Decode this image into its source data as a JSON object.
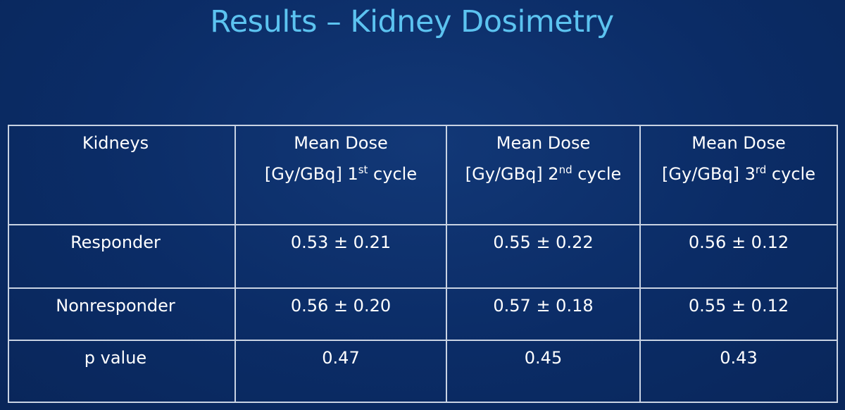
{
  "slide": {
    "title": "Results – Kidney Dosimetry"
  },
  "table": {
    "corner_label": "Kidneys",
    "columns": [
      {
        "line1": "Mean Dose",
        "line2_prefix": "[Gy/GBq] 1",
        "line2_sup": "st",
        "line2_suffix": " cycle"
      },
      {
        "line1": "Mean Dose",
        "line2_prefix": "[Gy/GBq] 2",
        "line2_sup": "nd",
        "line2_suffix": " cycle"
      },
      {
        "line1": "Mean Dose",
        "line2_prefix": "[Gy/GBq]  3",
        "line2_sup": "rd",
        "line2_suffix": " cycle"
      }
    ],
    "rows": [
      {
        "label": "Responder",
        "values": [
          "0.53 ± 0.21",
          "0.55 ± 0.22",
          "0.56 ± 0.12"
        ]
      },
      {
        "label": "Nonresponder",
        "values": [
          "0.56 ± 0.20",
          "0.57 ± 0.18",
          "0.55 ± 0.12"
        ]
      },
      {
        "label": "p value",
        "values": [
          "0.47",
          "0.45",
          "0.43"
        ]
      }
    ]
  },
  "colors": {
    "background": "#0b2c66",
    "title": "#5cc3f0",
    "text": "#ffffff",
    "grid": "#c9d3e3"
  }
}
